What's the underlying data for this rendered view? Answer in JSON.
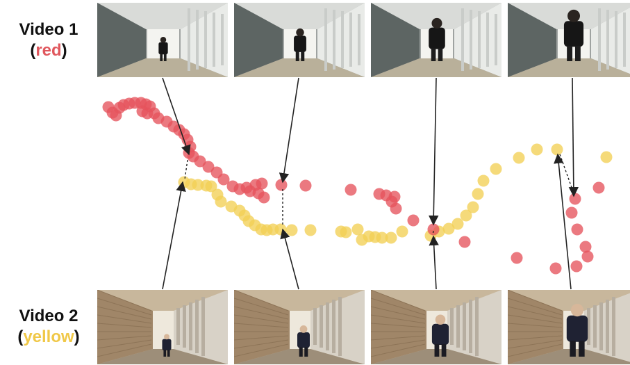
{
  "labels": {
    "video1": {
      "title": "Video 1",
      "color_name": "red",
      "open": "(",
      "close": ")"
    },
    "video2": {
      "title": "Video 2",
      "color_name": "yellow",
      "open": "(",
      "close": ")"
    }
  },
  "colors": {
    "red": "#e5535c",
    "yellow": "#f2cf55",
    "red_text": "#e0575d",
    "yellow_text": "#f0c848",
    "arrow": "#222222"
  },
  "icons": {
    "video1_frames": "hallway-runner-thumbnail",
    "video2_frames": "colonnade-runner-thumbnail"
  },
  "video1_frames": [
    {
      "runner_scale": 0.35
    },
    {
      "runner_scale": 0.55
    },
    {
      "runner_scale": 0.8
    },
    {
      "runner_scale": 1.0
    }
  ],
  "video2_frames": [
    {
      "runner_scale": 0.3
    },
    {
      "runner_scale": 0.5
    },
    {
      "runner_scale": 0.75
    },
    {
      "runner_scale": 1.0
    }
  ]
}
